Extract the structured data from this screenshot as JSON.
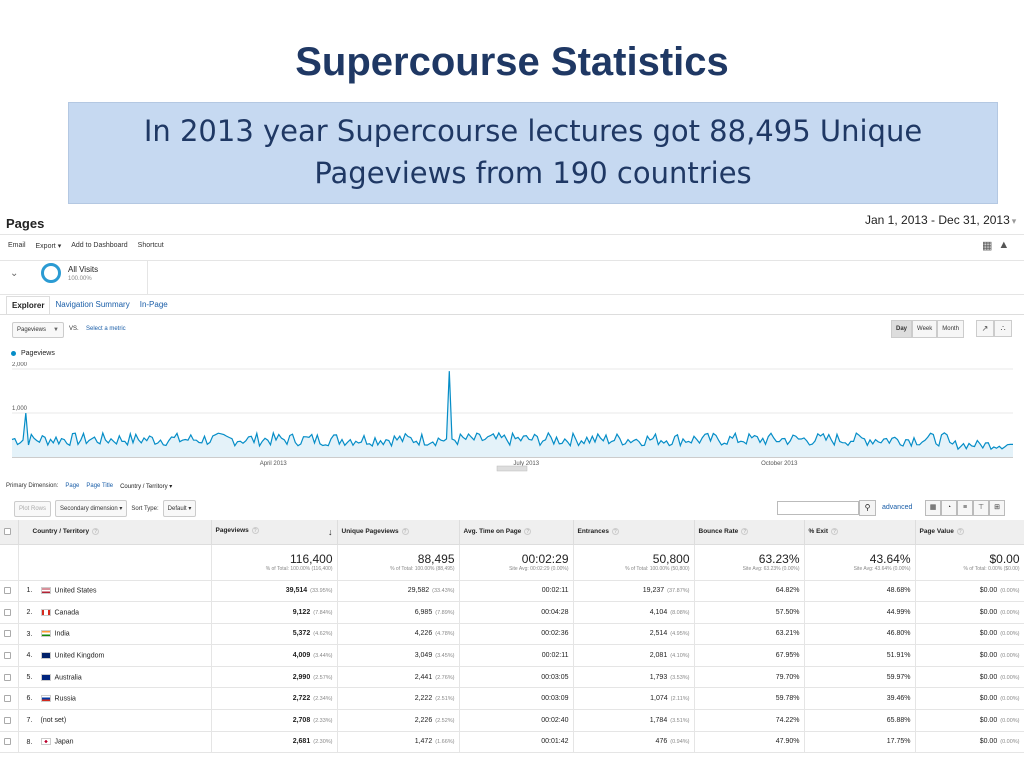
{
  "slide": {
    "title": "Supercourse Statistics",
    "callout_line1": "In 2013 year Supercourse lectures got 88,495 Unique",
    "callout_line2": "Pageviews from 190 countries"
  },
  "report": {
    "title": "Pages",
    "date_range": "Jan 1, 2013 - Dec 31, 2013",
    "toolbar": [
      "Email",
      "Export ▾",
      "Add to Dashboard",
      "Shortcut"
    ],
    "segment": {
      "name": "All Visits",
      "percent": "100.00%"
    },
    "tabs": [
      "Explorer",
      "Navigation Summary",
      "In-Page"
    ],
    "metric_selector": "Pageviews",
    "vs_label": "VS.",
    "select_metric": "Select a metric",
    "periods": [
      "Day",
      "Week",
      "Month"
    ],
    "active_period": "Day",
    "primary_dimension_label": "Primary Dimension:",
    "primary_dimensions": [
      "Page",
      "Page Title",
      "Country / Territory ▾"
    ],
    "plot_rows": "Plot Rows",
    "secondary_dimension": "Secondary dimension ▾",
    "sort_type_label": "Sort Type:",
    "sort_type": "Default ▾",
    "advanced": "advanced",
    "colors": {
      "series": "#058dc7",
      "link": "#1a5ea8",
      "title": "#1f3864",
      "callout_bg": "#c6d9f1"
    }
  },
  "chart_data": {
    "type": "area",
    "title": "",
    "legend": "Pageviews",
    "y_ticks": [
      "2,000",
      "1,000"
    ],
    "ylim": [
      0,
      2000
    ],
    "x_ticks": [
      "April 2013",
      "July 2013",
      "October 2013"
    ],
    "x_tick_days": [
      95,
      187,
      279
    ],
    "peak": {
      "day": 159,
      "value": 1950
    },
    "baseline_range": [
      250,
      550
    ],
    "days": 365
  },
  "table": {
    "headers": [
      "Country / Territory",
      "Pageviews",
      "Unique Pageviews",
      "Avg. Time on Page",
      "Entrances",
      "Bounce Rate",
      "% Exit",
      "Page Value"
    ],
    "totals": [
      {
        "big": "116,400",
        "sub": "% of Total: 100.00% (116,400)"
      },
      {
        "big": "88,495",
        "sub": "% of Total: 100.00% (88,495)"
      },
      {
        "big": "00:02:29",
        "sub": "Site Avg: 00:02:29 (0.00%)"
      },
      {
        "big": "50,800",
        "sub": "% of Total: 100.00% (50,800)"
      },
      {
        "big": "63.23%",
        "sub": "Site Avg: 63.23% (0.00%)"
      },
      {
        "big": "43.64%",
        "sub": "Site Avg: 43.64% (0.00%)"
      },
      {
        "big": "$0.00",
        "sub": "% of Total: 0.00% ($0.00)"
      }
    ],
    "rows": [
      {
        "idx": "1.",
        "country": "United States",
        "flag": "us",
        "pv": "39,514",
        "pv_pct": "(33.95%)",
        "upv": "29,582",
        "upv_pct": "(33.43%)",
        "time": "00:02:11",
        "ent": "19,237",
        "ent_pct": "(37.87%)",
        "bounce": "64.82%",
        "exit": "48.68%",
        "value": "$0.00",
        "value_pct": "(0.00%)"
      },
      {
        "idx": "2.",
        "country": "Canada",
        "flag": "ca",
        "pv": "9,122",
        "pv_pct": "(7.84%)",
        "upv": "6,985",
        "upv_pct": "(7.89%)",
        "time": "00:04:28",
        "ent": "4,104",
        "ent_pct": "(8.08%)",
        "bounce": "57.50%",
        "exit": "44.99%",
        "value": "$0.00",
        "value_pct": "(0.00%)"
      },
      {
        "idx": "3.",
        "country": "India",
        "flag": "in",
        "pv": "5,372",
        "pv_pct": "(4.62%)",
        "upv": "4,226",
        "upv_pct": "(4.78%)",
        "time": "00:02:36",
        "ent": "2,514",
        "ent_pct": "(4.95%)",
        "bounce": "63.21%",
        "exit": "46.80%",
        "value": "$0.00",
        "value_pct": "(0.00%)"
      },
      {
        "idx": "4.",
        "country": "United Kingdom",
        "flag": "uk",
        "pv": "4,009",
        "pv_pct": "(3.44%)",
        "upv": "3,049",
        "upv_pct": "(3.45%)",
        "time": "00:02:11",
        "ent": "2,081",
        "ent_pct": "(4.10%)",
        "bounce": "67.95%",
        "exit": "51.91%",
        "value": "$0.00",
        "value_pct": "(0.00%)"
      },
      {
        "idx": "5.",
        "country": "Australia",
        "flag": "au",
        "pv": "2,990",
        "pv_pct": "(2.57%)",
        "upv": "2,441",
        "upv_pct": "(2.76%)",
        "time": "00:03:05",
        "ent": "1,793",
        "ent_pct": "(3.53%)",
        "bounce": "79.70%",
        "exit": "59.97%",
        "value": "$0.00",
        "value_pct": "(0.00%)"
      },
      {
        "idx": "6.",
        "country": "Russia",
        "flag": "ru",
        "pv": "2,722",
        "pv_pct": "(2.34%)",
        "upv": "2,222",
        "upv_pct": "(2.51%)",
        "time": "00:03:09",
        "ent": "1,074",
        "ent_pct": "(2.11%)",
        "bounce": "59.78%",
        "exit": "39.46%",
        "value": "$0.00",
        "value_pct": "(0.00%)"
      },
      {
        "idx": "7.",
        "country": "(not set)",
        "flag": "",
        "pv": "2,708",
        "pv_pct": "(2.33%)",
        "upv": "2,226",
        "upv_pct": "(2.52%)",
        "time": "00:02:40",
        "ent": "1,784",
        "ent_pct": "(3.51%)",
        "bounce": "74.22%",
        "exit": "65.88%",
        "value": "$0.00",
        "value_pct": "(0.00%)"
      },
      {
        "idx": "8.",
        "country": "Japan",
        "flag": "jp",
        "pv": "2,681",
        "pv_pct": "(2.30%)",
        "upv": "1,472",
        "upv_pct": "(1.66%)",
        "time": "00:01:42",
        "ent": "476",
        "ent_pct": "(0.94%)",
        "bounce": "47.90%",
        "exit": "17.75%",
        "value": "$0.00",
        "value_pct": "(0.00%)"
      }
    ]
  }
}
